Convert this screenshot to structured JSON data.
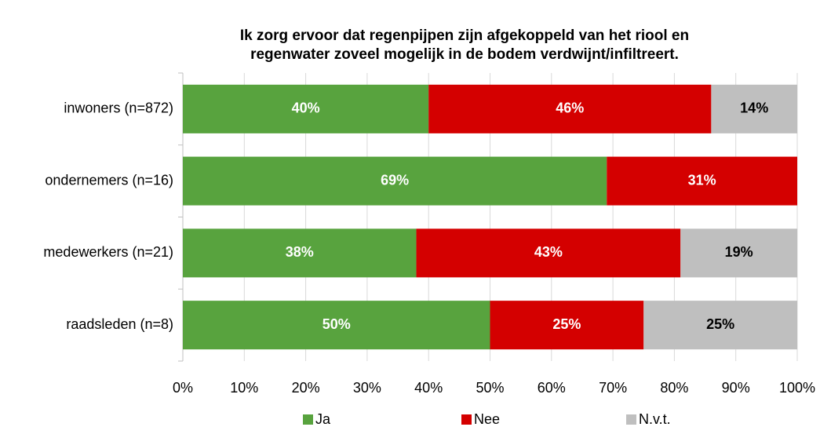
{
  "chart_data": {
    "type": "stacked_barh",
    "title": [
      "Ik zorg ervoor dat regenpijpen zijn afgekoppeld van het riool en",
      "regenwater zoveel mogelijk in de bodem verdwijnt/infiltreert."
    ],
    "categories": [
      "inwoners (n=872)",
      "ondernemers (n=16)",
      "medewerkers (n=21)",
      "raadsleden (n=8)"
    ],
    "series": [
      {
        "name": "Ja",
        "color": "#58a33e",
        "label_color": "#ffffff",
        "values": [
          40,
          69,
          38,
          50
        ],
        "value_labels": [
          "40%",
          "69%",
          "38%",
          "50%"
        ]
      },
      {
        "name": "Nee",
        "color": "#d40000",
        "label_color": "#ffffff",
        "values": [
          46,
          31,
          43,
          25
        ],
        "value_labels": [
          "46%",
          "31%",
          "43%",
          "25%"
        ]
      },
      {
        "name": "N.v.t.",
        "color": "#bfbfbf",
        "label_color": "#000000",
        "values": [
          14,
          0,
          19,
          25
        ],
        "value_labels": [
          "14%",
          null,
          "19%",
          "25%"
        ]
      }
    ],
    "xlim": [
      0,
      100
    ],
    "xticks": [
      {
        "value": 0,
        "label": "0%"
      },
      {
        "value": 10,
        "label": "10%"
      },
      {
        "value": 20,
        "label": "20%"
      },
      {
        "value": 30,
        "label": "30%"
      },
      {
        "value": 40,
        "label": "40%"
      },
      {
        "value": 50,
        "label": "50%"
      },
      {
        "value": 60,
        "label": "60%"
      },
      {
        "value": 70,
        "label": "70%"
      },
      {
        "value": 80,
        "label": "80%"
      },
      {
        "value": 90,
        "label": "90%"
      },
      {
        "value": 100,
        "label": "100%"
      }
    ],
    "grid": true,
    "legend": "bottom"
  }
}
